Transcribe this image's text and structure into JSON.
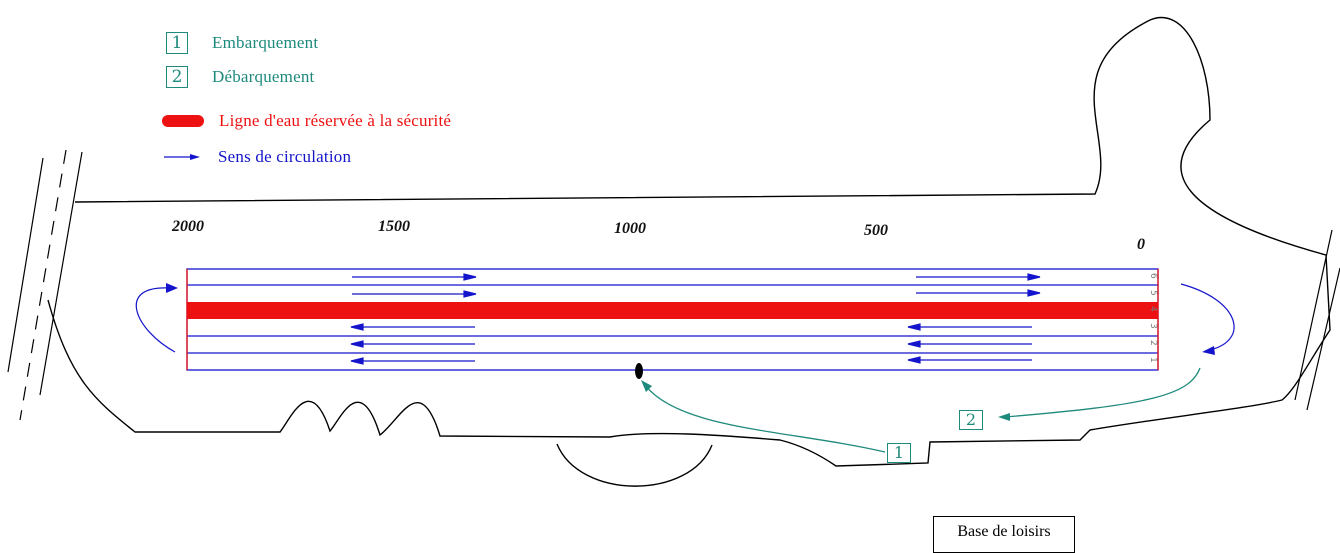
{
  "legend": {
    "embark": {
      "num": "1",
      "label": "Embarquement"
    },
    "disembark": {
      "num": "2",
      "label": "Débarquement"
    },
    "safety_lane": {
      "label": "Ligne d'eau réservée à la sécurité"
    },
    "direction": {
      "label": "Sens de circulation"
    }
  },
  "distances": [
    "2000",
    "1500",
    "1000",
    "500",
    "0"
  ],
  "lanes": [
    "6",
    "5",
    "4",
    "3",
    "2",
    "1"
  ],
  "points": {
    "embark": "1",
    "disembark": "2"
  },
  "base_label": "Base de loisirs",
  "colors": {
    "lane_lines": "#1414cc",
    "safety_lane": "#ee1111",
    "route": "#1e8a7c",
    "shore": "#000000"
  }
}
